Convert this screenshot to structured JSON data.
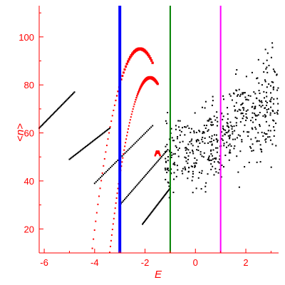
{
  "chart_data": {
    "type": "scatter",
    "xlabel": "E",
    "ylabel": "<n>",
    "xlim": [
      -6.2,
      3.3
    ],
    "ylim": [
      10,
      113
    ],
    "xticks": [
      -6,
      -4,
      -2,
      0,
      2
    ],
    "yticks": [
      20,
      40,
      60,
      80,
      100
    ],
    "grid": false,
    "vertical_lines": [
      {
        "x": -3.0,
        "color": "#0000ff"
      },
      {
        "x": -1.0,
        "color": "#008000"
      },
      {
        "x": 1.0,
        "color": "#ff00ff"
      }
    ],
    "series": [
      {
        "color": "#ff0000",
        "bands": [
          {
            "x0": -4.8,
            "x1": -1.7,
            "peak_x": -2.2,
            "peak_y": 95,
            "sharp": 1.2
          },
          {
            "x0": -3.4,
            "x1": -1.5,
            "peak_x": -1.8,
            "peak_y": 83,
            "sharp": 0.9
          },
          {
            "x0": -1.6,
            "x1": -1.4,
            "peak_x": -1.5,
            "peak_y": 52,
            "sharp": 0.5
          }
        ]
      },
      {
        "color": "#000000",
        "diagonal_bands": [
          {
            "x0": -6.2,
            "y0": 62,
            "x1": -4.8,
            "y1": 77
          },
          {
            "x0": -5.0,
            "y0": 49,
            "x1": -3.4,
            "y1": 62
          },
          {
            "x0": -4.0,
            "y0": 39,
            "x1": -1.7,
            "y1": 63
          },
          {
            "x0": -3.0,
            "y0": 30,
            "x1": -1.1,
            "y1": 53
          },
          {
            "x0": -2.1,
            "y0": 22,
            "x1": -1.0,
            "y1": 37
          }
        ],
        "cloud": {
          "x0": -1.2,
          "x1": 3.3,
          "center_y": 52,
          "slope": 6.5,
          "spread": 12
        }
      }
    ]
  }
}
